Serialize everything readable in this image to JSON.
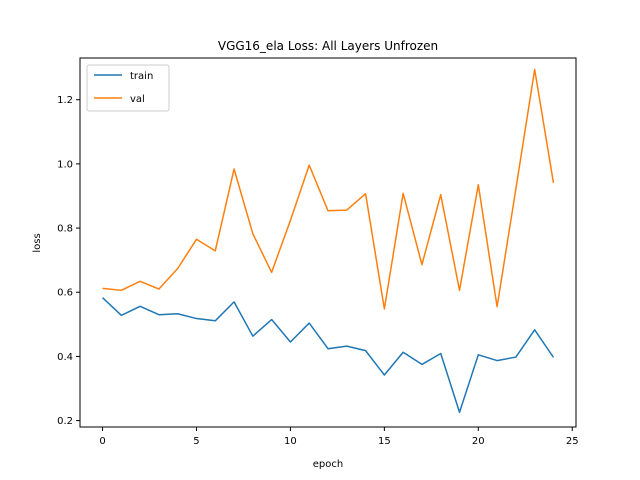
{
  "chart_data": {
    "type": "line",
    "title": "VGG16_ela Loss: All Layers Unfrozen",
    "xlabel": "epoch",
    "ylabel": "loss",
    "xlim": [
      -1.2,
      25.2
    ],
    "ylim": [
      0.18,
      1.33
    ],
    "xticks": [
      0,
      5,
      10,
      15,
      20,
      25
    ],
    "yticks": [
      0.2,
      0.4,
      0.6,
      0.8,
      1.0,
      1.2
    ],
    "ytick_labels": [
      "0.2",
      "0.4",
      "0.6",
      "0.8",
      "1.0",
      "1.2"
    ],
    "grid": false,
    "legend_position": "top-left",
    "x": [
      0,
      1,
      2,
      3,
      4,
      5,
      6,
      7,
      8,
      9,
      10,
      11,
      12,
      13,
      14,
      15,
      16,
      17,
      18,
      19,
      20,
      21,
      22,
      23,
      24
    ],
    "series": [
      {
        "name": "train",
        "color": "#1f77b4",
        "values": [
          0.583,
          0.528,
          0.556,
          0.53,
          0.533,
          0.518,
          0.511,
          0.57,
          0.463,
          0.515,
          0.445,
          0.504,
          0.424,
          0.432,
          0.418,
          0.342,
          0.413,
          0.375,
          0.409,
          0.226,
          0.405,
          0.387,
          0.398,
          0.483,
          0.397
        ]
      },
      {
        "name": "val",
        "color": "#ff7f0e",
        "values": [
          0.612,
          0.606,
          0.634,
          0.61,
          0.674,
          0.765,
          0.729,
          0.984,
          0.782,
          0.662,
          0.824,
          0.996,
          0.854,
          0.856,
          0.907,
          0.548,
          0.908,
          0.686,
          0.904,
          0.606,
          0.935,
          0.555,
          0.922,
          1.294,
          0.941
        ]
      }
    ]
  }
}
